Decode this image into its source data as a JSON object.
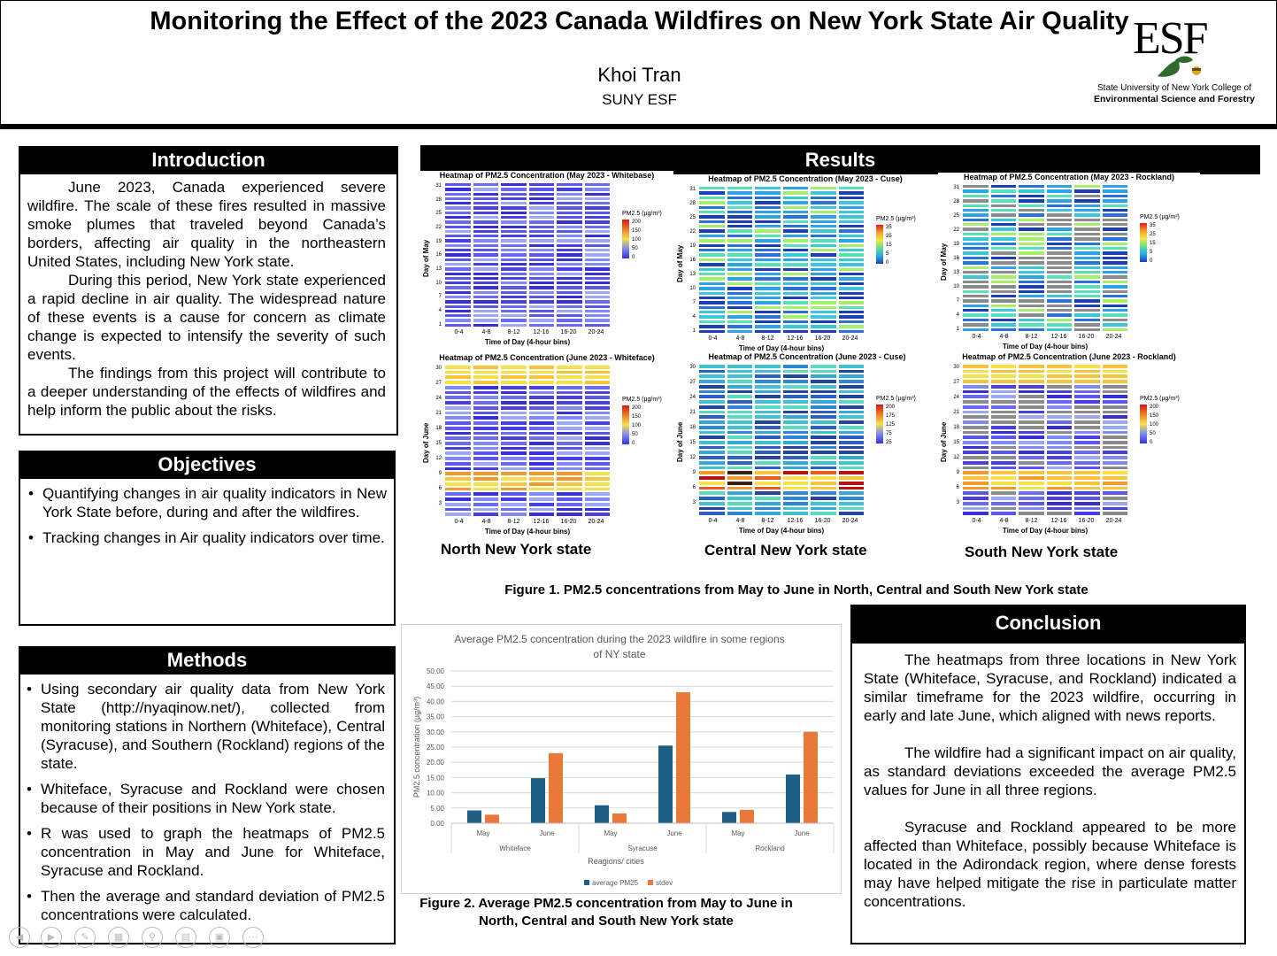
{
  "header": {
    "title": "Monitoring the Effect of the 2023 Canada Wildfires on New York State Air Quality",
    "author": "Khoi Tran",
    "affiliation": "SUNY ESF",
    "logo": {
      "mark": "ESF",
      "line1": "State University of New York College of",
      "line2": "Environmental Science and Forestry",
      "icon": "oak-leaf-acorn-icon"
    }
  },
  "introduction": {
    "heading": "Introduction",
    "paragraphs": [
      "June 2023, Canada experienced severe wildfire. The scale of these fires resulted in massive smoke plumes that traveled beyond Canada’s borders, affecting air quality in the northeastern United States, including New York state.",
      "During this period, New York state experienced a rapid decline in air quality. The widespread nature of these events is a cause for concern as climate change is expected to intensify the severity of such events.",
      "The findings from this project will contribute to a deeper understanding of the effects of wildfires and help inform the public about the risks."
    ]
  },
  "objectives": {
    "heading": "Objectives",
    "items": [
      "Quantifying changes in air quality indicators in New York State before, during and after the wildfires.",
      "Tracking changes in Air quality indicators over time."
    ]
  },
  "methods": {
    "heading": "Methods",
    "items": [
      "Using secondary air quality data from New York State (http://nyaqinow.net/), collected from monitoring stations in Northern (Whiteface), Central (Syracuse), and Southern (Rockland) regions of the state.",
      "Whiteface, Syracuse and Rockland were chosen because of their positions in New York state.",
      "R was used to graph the heatmaps of PM2.5 concentration in May and June for Whiteface, Syracuse and Rockland.",
      "Then the average and standard deviation of PM2.5 concentrations were calculated."
    ]
  },
  "results": {
    "heading": "Results",
    "heatmaps": [
      {
        "title": "Heatmap of PM2.5 Concentration (May 2023 - Whitebase)",
        "ylabel": "Day of May",
        "xlabel": "Time of Day (4-hour bins)",
        "legend_title": "PM2.5 (µg/m³)",
        "legend_ticks": [
          "200",
          "150",
          "100",
          "50",
          "0"
        ],
        "palette": "high"
      },
      {
        "title": "Heatmap of PM2.5 Concentration (May 2023 - Cuse)",
        "ylabel": "Day of May",
        "xlabel": "Time of Day (4-hour bins)",
        "legend_title": "PM2.5 (µg/m³)",
        "legend_ticks": [
          "35",
          "25",
          "15",
          "5",
          "0"
        ],
        "palette": "low"
      },
      {
        "title": "Heatmap of PM2.5 Concentration (May 2023 - Rockland)",
        "ylabel": "Day of May",
        "xlabel": "Time of Day (4-hour bins)",
        "legend_title": "PM2.5 (µg/m³)",
        "legend_ticks": [
          "35",
          "25",
          "15",
          "5",
          "0"
        ],
        "palette": "low"
      },
      {
        "title": "Heatmap of PM2.5 Concentration (June 2023 - Whiteface)",
        "ylabel": "Day of June",
        "xlabel": "Time of Day (4-hour bins)",
        "legend_title": "PM2.5 (µg/m³)",
        "legend_ticks": [
          "200",
          "150",
          "100",
          "50",
          "0"
        ],
        "palette": "high"
      },
      {
        "title": "Heatmap of PM2.5 Concentration (June 2023 - Cuse)",
        "ylabel": "Day of June",
        "xlabel": "Time of Day (4-hour bins)",
        "legend_title": "PM2.5 (µg/m³)",
        "legend_ticks": [
          "200",
          "175",
          "125",
          "75",
          "25"
        ],
        "palette": "cuse"
      },
      {
        "title": "Heatmap of PM2.5 Concentration (June 2023 - Rockland)",
        "ylabel": "Day of June",
        "xlabel": "Time of Day (4-hour bins)",
        "legend_title": "PM2.5 (µg/m³)",
        "legend_ticks": [
          "200",
          "150",
          "100",
          "50",
          "0"
        ],
        "palette": "high"
      }
    ],
    "time_bins": [
      "0-4",
      "4-8",
      "8-12",
      "12-16",
      "16-20",
      "20-24"
    ],
    "regions": [
      "North New York state",
      "Central New York state",
      "South New York state"
    ],
    "figure1_caption": "Figure 1. PM2.5 concentrations from May to June in North, Central and South New York state",
    "figure2_caption": "Figure 2. Average PM2.5 concentration from May to June in North, Central and South New York state"
  },
  "conclusion": {
    "heading": "Conclusion",
    "paragraphs": [
      "The heatmaps from three locations in New York State (Whiteface, Syracuse, and Rockland) indicated a similar timeframe for the 2023 wildfire, occurring in early and late June, which aligned with news reports.",
      "The wildfire had a significant impact on air quality, as standard deviations exceeded the average PM2.5 values for June in all three regions.",
      "Syracuse and Rockland appeared to be more affected than Whiteface, possibly because Whiteface is located in the Adirondack region, where dense forests may have helped mitigate the rise in particulate matter concentrations."
    ]
  },
  "chart_data": {
    "type": "bar",
    "title": "Average PM2.5 concentration during the 2023 wildfire in some regions of NY state",
    "xlabel": "Reagions/ cities",
    "ylabel": "PM2.5 concentration (µg/m³)",
    "ylim": [
      0,
      50
    ],
    "ytick_labels": [
      "0.00",
      "5.00",
      "10.00",
      "15.00",
      "20.00",
      "25.00",
      "30.00",
      "35.00",
      "40.00",
      "45.00",
      "50.00"
    ],
    "groups": [
      "Whiteface",
      "Syracuse",
      "Rockland"
    ],
    "categories": [
      "May",
      "June",
      "May",
      "June",
      "May",
      "June"
    ],
    "series": [
      {
        "name": "average PM25",
        "color": "#1f5f84",
        "values": [
          4.2,
          14.8,
          5.9,
          25.5,
          3.7,
          16.0
        ]
      },
      {
        "name": "stdev",
        "color": "#e8793a",
        "values": [
          2.8,
          23.0,
          3.2,
          43.0,
          4.4,
          30.0
        ]
      }
    ],
    "legend": "bottom",
    "grid": true
  },
  "toolbar": {
    "icons": [
      "prev-icon",
      "play-icon",
      "pen-icon",
      "slides-icon",
      "zoom-icon",
      "subtitle-icon",
      "camera-icon",
      "more-icon"
    ]
  }
}
